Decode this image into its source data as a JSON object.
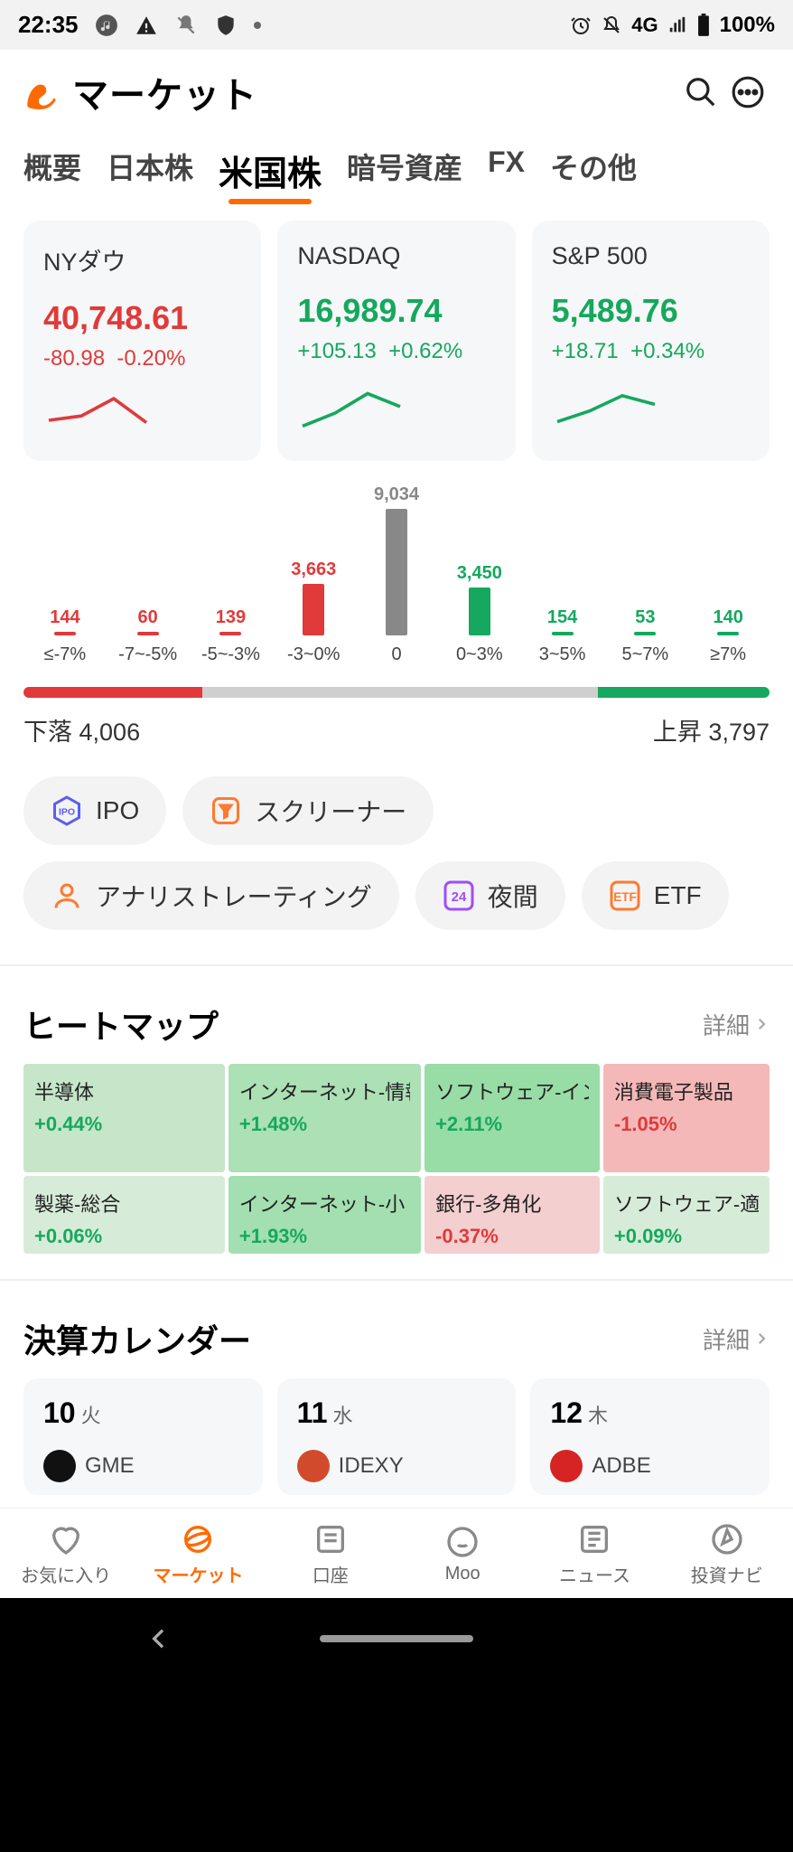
{
  "statusbar": {
    "time": "22:35",
    "network_label": "4G",
    "battery_pct": "100%"
  },
  "appbar": {
    "title": "マーケット",
    "brand_color": "#ff6a00"
  },
  "tabs": {
    "items": [
      "概要",
      "日本株",
      "米国株",
      "暗号資産",
      "FX",
      "その他"
    ],
    "active_index": 2
  },
  "indices": [
    {
      "name": "NYダウ",
      "value": "40,748.61",
      "abs": "-80.98",
      "pct": "-0.20%",
      "dir": "down",
      "color": "#e03a3a",
      "spark": [
        20,
        24,
        40,
        18
      ]
    },
    {
      "name": "NASDAQ",
      "value": "16,989.74",
      "abs": "+105.13",
      "pct": "+0.62%",
      "dir": "up",
      "color": "#15a85e",
      "spark": [
        8,
        20,
        38,
        26
      ]
    },
    {
      "name": "S&P 500",
      "value": "5,489.76",
      "abs": "+18.71",
      "pct": "+0.34%",
      "dir": "up",
      "color": "#15a85e",
      "spark": [
        12,
        22,
        36,
        28
      ]
    }
  ],
  "distribution": {
    "max_value": 9034,
    "cols": [
      {
        "range": "≤-7%",
        "value": 144,
        "num_color": "#e03a3a",
        "bar_class": "r"
      },
      {
        "range": "-7~-5%",
        "value": 60,
        "num_color": "#e03a3a",
        "bar_class": "r"
      },
      {
        "range": "-5~-3%",
        "value": 139,
        "num_color": "#e03a3a",
        "bar_class": "r"
      },
      {
        "range": "-3~0%",
        "value": 3663,
        "num_color": "#e03a3a",
        "bar_class": "r"
      },
      {
        "range": "0",
        "value": 9034,
        "num_color": "#888888",
        "bar_class": "n"
      },
      {
        "range": "0~3%",
        "value": 3450,
        "num_color": "#15a85e",
        "bar_class": "g"
      },
      {
        "range": "3~5%",
        "value": 154,
        "num_color": "#15a85e",
        "bar_class": "g"
      },
      {
        "range": "5~7%",
        "value": 53,
        "num_color": "#15a85e",
        "bar_class": "g"
      },
      {
        "range": "≥7%",
        "value": 140,
        "num_color": "#15a85e",
        "bar_class": "g"
      }
    ],
    "down_label": "下落",
    "down_value": "4,006",
    "up_label": "上昇",
    "up_value": "3,797",
    "gauge": [
      {
        "color": "#e03a3a",
        "pct": 24
      },
      {
        "color": "#cfcfcf",
        "pct": 53
      },
      {
        "color": "#15a85e",
        "pct": 23
      }
    ]
  },
  "chips": [
    {
      "label": "IPO",
      "icon": "ipo",
      "icon_color": "#5b5df0"
    },
    {
      "label": "スクリーナー",
      "icon": "screener",
      "icon_color": "#ff7a2e"
    },
    {
      "label": "アナリストレーティング",
      "icon": "analyst",
      "icon_color": "#ff7a2e"
    },
    {
      "label": "夜間",
      "icon": "night24",
      "icon_color": "#a04cff"
    },
    {
      "label": "ETF",
      "icon": "etf",
      "icon_color": "#ff7a2e"
    }
  ],
  "heatmap": {
    "title": "ヒートマップ",
    "detail_label": "詳細",
    "cells": [
      {
        "name": "半導体",
        "change": "+0.44%",
        "bg": "#c6e6c9",
        "fg": "#15a85e"
      },
      {
        "name": "インターネット-情報",
        "change": "+1.48%",
        "bg": "#ace0b5",
        "fg": "#15a85e"
      },
      {
        "name": "ソフトウェア-イン",
        "change": "+2.11%",
        "bg": "#98dca6",
        "fg": "#15a85e"
      },
      {
        "name": "消費電子製品",
        "change": "-1.05%",
        "bg": "#f5b8b8",
        "fg": "#e03a3a"
      },
      {
        "name": "製薬-総合",
        "change": "+0.06%",
        "bg": "#d7ecd8",
        "fg": "#15a85e"
      },
      {
        "name": "インターネット-小",
        "change": "+1.93%",
        "bg": "#a3dfb0",
        "fg": "#15a85e"
      },
      {
        "name": "銀行-多角化",
        "change": "-0.37%",
        "bg": "#f4cfcf",
        "fg": "#e03a3a"
      },
      {
        "name": "ソフトウェア-適",
        "change": "+0.09%",
        "bg": "#d7ecd8",
        "fg": "#15a85e"
      }
    ]
  },
  "earnings": {
    "title": "決算カレンダー",
    "detail_label": "詳細",
    "days": [
      {
        "day": "10",
        "weekday": "火",
        "ticker": "GME",
        "chip_bg": "#111"
      },
      {
        "day": "11",
        "weekday": "水",
        "ticker": "IDEXY",
        "chip_bg": "#d24a2c"
      },
      {
        "day": "12",
        "weekday": "木",
        "ticker": "ADBE",
        "chip_bg": "#d62323"
      }
    ]
  },
  "bottomnav": {
    "items": [
      {
        "label": "お気に入り"
      },
      {
        "label": "マーケット"
      },
      {
        "label": "口座"
      },
      {
        "label": "Moo"
      },
      {
        "label": "ニュース"
      },
      {
        "label": "投資ナビ"
      }
    ],
    "active_index": 1,
    "active_color": "#ff6a00",
    "inactive_color": "#8a8a8a"
  }
}
